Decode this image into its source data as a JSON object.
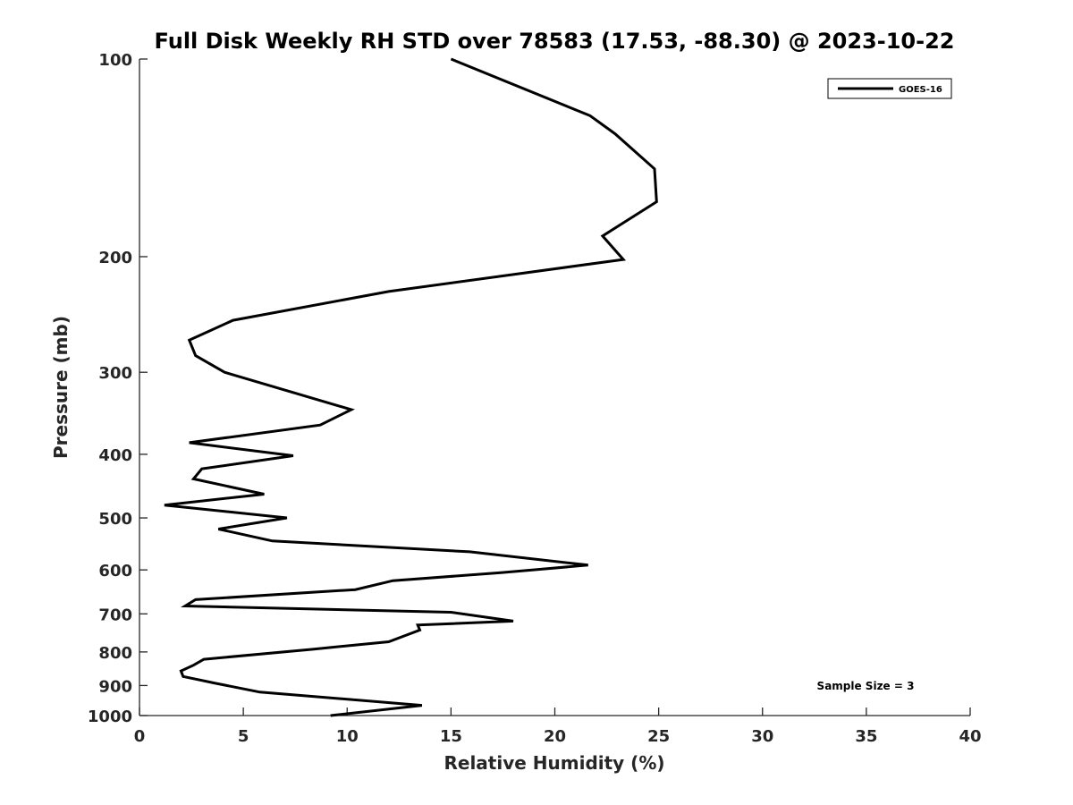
{
  "chart_data": {
    "type": "line",
    "title": "Full Disk Weekly RH STD over 78583 (17.53, -88.30) @ 2023-10-22",
    "xlabel": "Relative Humidity (%)",
    "ylabel": "Pressure (mb)",
    "xlim": [
      0,
      40
    ],
    "ylim": [
      1000,
      100
    ],
    "yscale": "log",
    "x_ticks": [
      0,
      5,
      10,
      15,
      20,
      25,
      30,
      35,
      40
    ],
    "x_tick_labels": [
      "0",
      "5",
      "10",
      "15",
      "20",
      "25",
      "30",
      "35",
      "40"
    ],
    "y_ticks": [
      100,
      200,
      300,
      400,
      500,
      600,
      700,
      800,
      900,
      1000
    ],
    "y_tick_labels": [
      "100",
      "200",
      "300",
      "400",
      "500",
      "600",
      "700",
      "800",
      "900",
      "1000"
    ],
    "grid": false,
    "legend_position": "top-right",
    "series": [
      {
        "name": "GOES-16",
        "color": "#000000",
        "x": [
          15.0,
          21.7,
          22.9,
          24.8,
          24.9,
          22.3,
          23.3,
          12.0,
          4.5,
          2.4,
          2.7,
          4.1,
          10.2,
          8.7,
          2.4,
          7.4,
          3.0,
          2.6,
          6.0,
          1.2,
          7.1,
          3.8,
          6.4,
          15.9,
          21.6,
          17.4,
          12.2,
          10.4,
          2.7,
          2.2,
          15.0,
          18.0,
          13.4,
          13.5,
          12.0,
          8.4,
          3.1,
          2.6,
          2.0,
          2.1,
          3.6,
          5.8,
          13.6,
          9.2
        ],
        "y": [
          100,
          122,
          130,
          147,
          165,
          186,
          202,
          226,
          250,
          268,
          283,
          300,
          342,
          361,
          384,
          402,
          421,
          436,
          460,
          478,
          500,
          520,
          542,
          563,
          590,
          606,
          623,
          643,
          666,
          681,
          696,
          718,
          728,
          741,
          772,
          792,
          821,
          838,
          855,
          872,
          892,
          921,
          965,
          1000
        ]
      }
    ],
    "annotation": "Sample Size = 3"
  }
}
